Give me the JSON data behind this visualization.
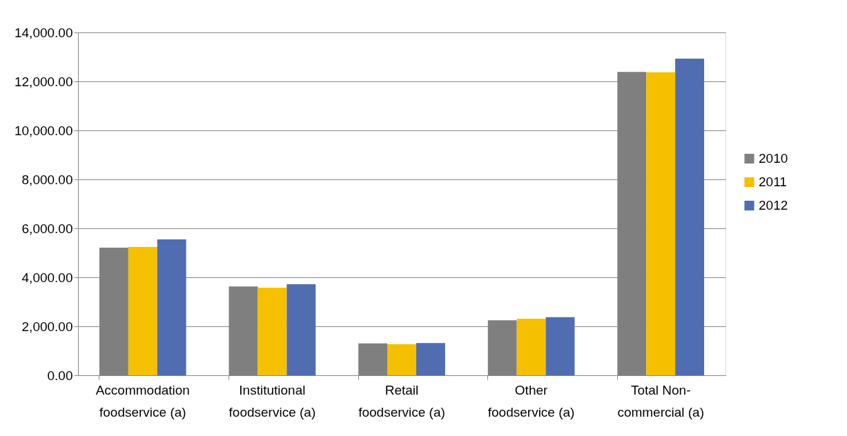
{
  "chart_data": {
    "type": "bar",
    "categories": [
      "Accommodation foodservice (a)",
      "Institutional foodservice (a)",
      "Retail foodservice (a)",
      "Other foodservice (a)",
      "Total Non-commercial (a)"
    ],
    "series": [
      {
        "name": "2010",
        "color": "#7f7f7f",
        "values": [
          5210,
          3630,
          1300,
          2250,
          12390
        ]
      },
      {
        "name": "2011",
        "color": "#f5c000",
        "values": [
          5240,
          3580,
          1270,
          2310,
          12370
        ]
      },
      {
        "name": "2012",
        "color": "#4f6db0",
        "values": [
          5550,
          3720,
          1320,
          2370,
          12930
        ]
      }
    ],
    "ylim": [
      0,
      14000
    ],
    "yticks": [
      {
        "value": 0,
        "label": "0.00"
      },
      {
        "value": 2000,
        "label": "2,000.00"
      },
      {
        "value": 4000,
        "label": "4,000.00"
      },
      {
        "value": 6000,
        "label": "6,000.00"
      },
      {
        "value": 8000,
        "label": "8,000.00"
      },
      {
        "value": 10000,
        "label": "10,000.00"
      },
      {
        "value": 12000,
        "label": "12,000.00"
      },
      {
        "value": 14000,
        "label": "14,000.00"
      }
    ],
    "grid": "y",
    "legend": "right"
  }
}
